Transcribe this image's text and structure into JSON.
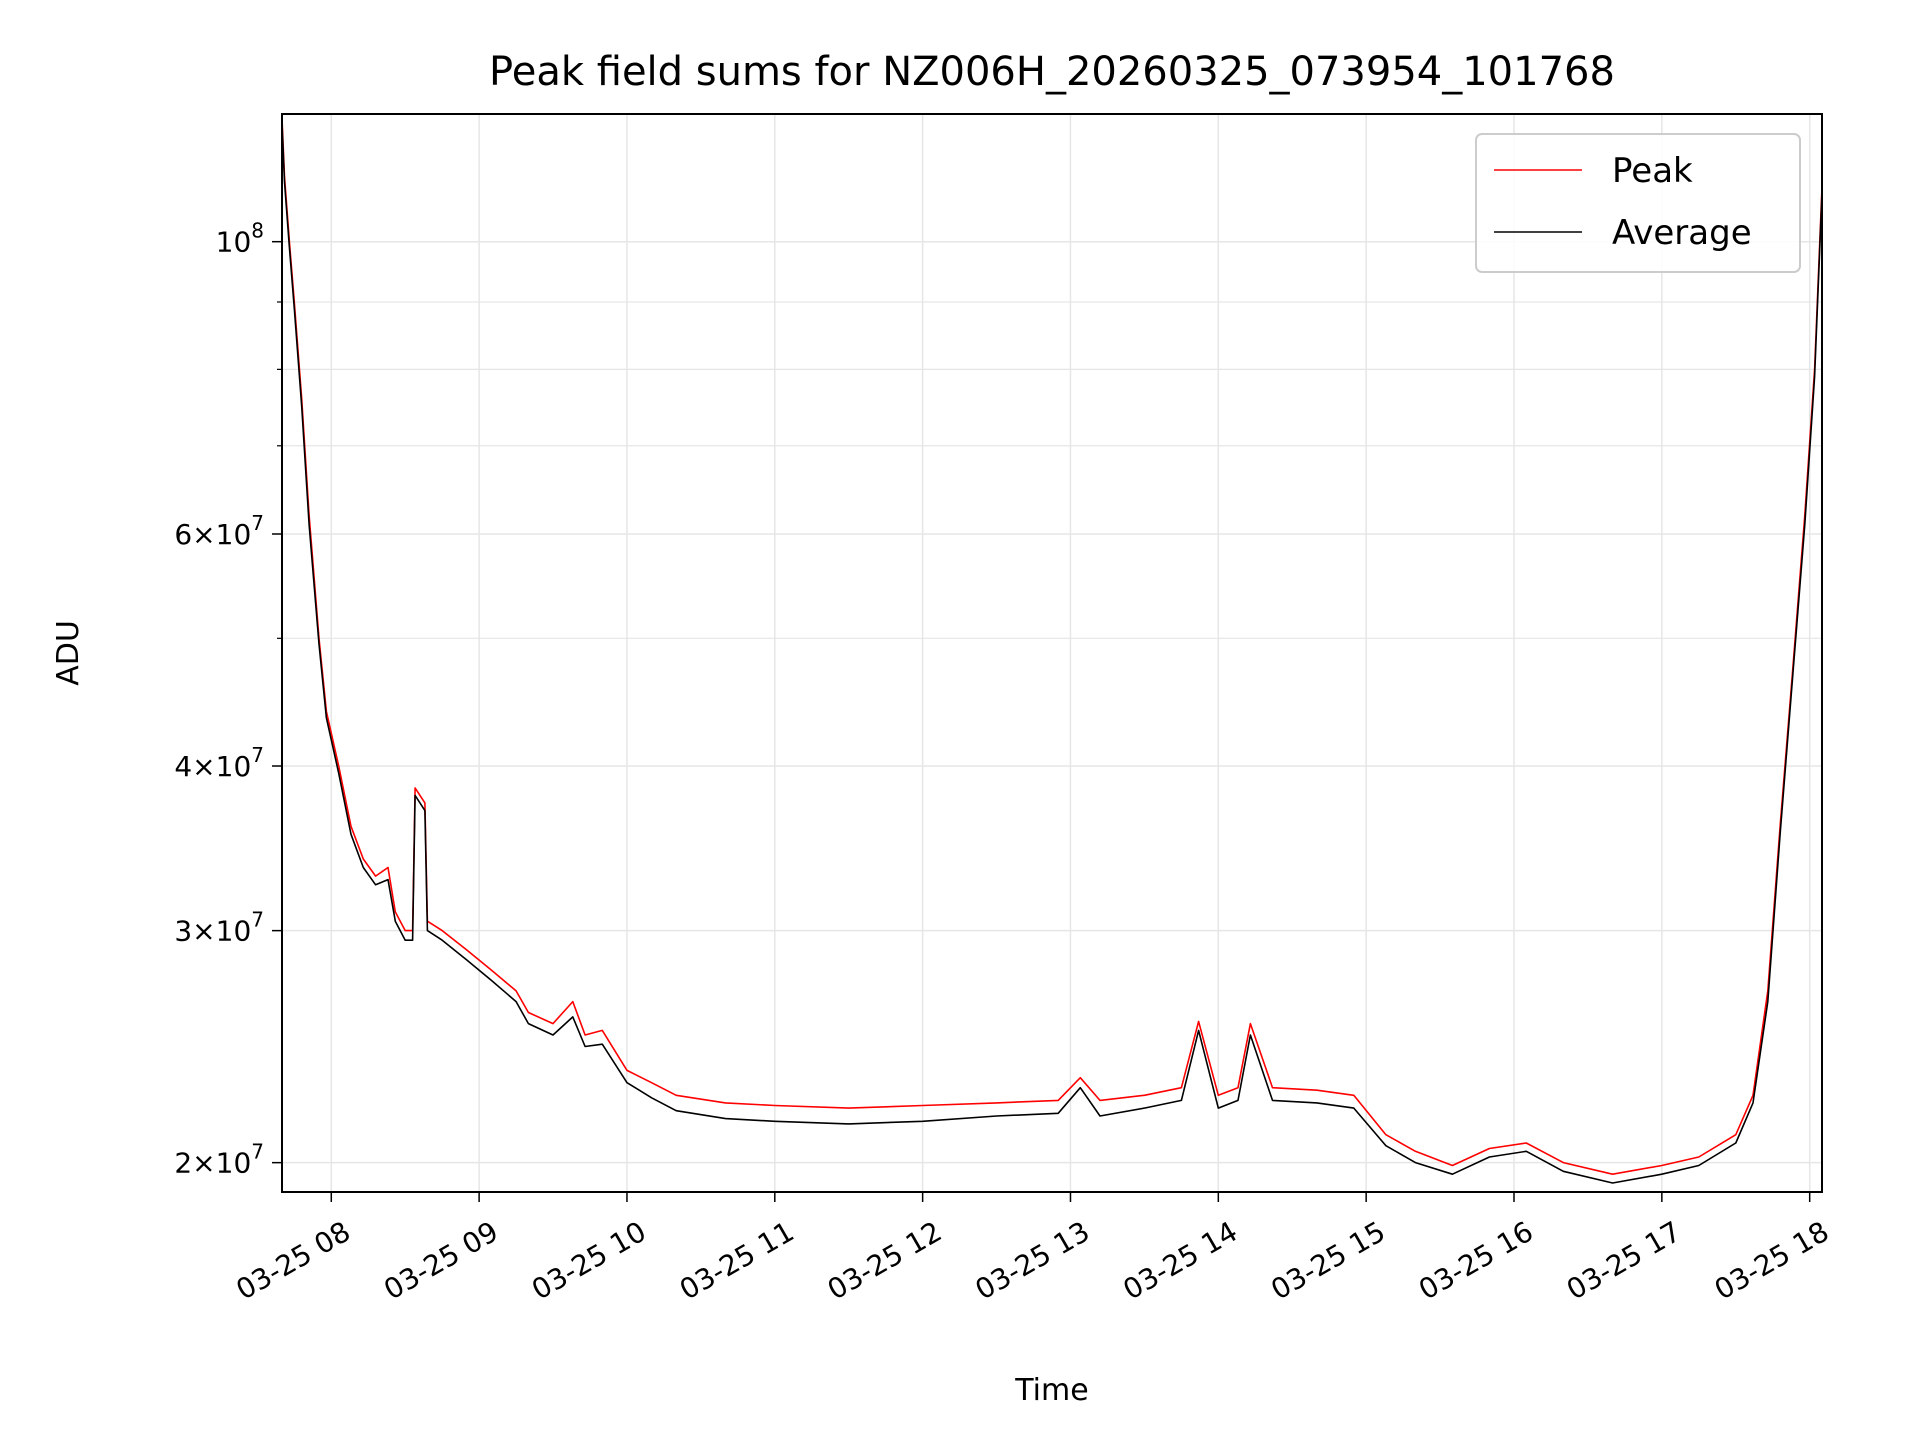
{
  "chart_data": {
    "type": "line",
    "title": "Peak field sums for NZ006H_20260325_073954_101768",
    "xlabel": "Time",
    "ylabel": "ADU",
    "yscale": "log",
    "xlim": [
      "2026-03-25 07:40",
      "2026-03-25 18:05"
    ],
    "ylim": [
      19000000,
      125000000
    ],
    "grid": true,
    "legend": {
      "placement": "top-right"
    },
    "x_ticks": [
      {
        "value": "2026-03-25 08:00",
        "label": "03-25 08"
      },
      {
        "value": "2026-03-25 09:00",
        "label": "03-25 09"
      },
      {
        "value": "2026-03-25 10:00",
        "label": "03-25 10"
      },
      {
        "value": "2026-03-25 11:00",
        "label": "03-25 11"
      },
      {
        "value": "2026-03-25 12:00",
        "label": "03-25 12"
      },
      {
        "value": "2026-03-25 13:00",
        "label": "03-25 13"
      },
      {
        "value": "2026-03-25 14:00",
        "label": "03-25 14"
      },
      {
        "value": "2026-03-25 15:00",
        "label": "03-25 15"
      },
      {
        "value": "2026-03-25 16:00",
        "label": "03-25 16"
      },
      {
        "value": "2026-03-25 17:00",
        "label": "03-25 17"
      },
      {
        "value": "2026-03-25 18:00",
        "label": "03-25 18"
      }
    ],
    "y_ticks": [
      {
        "value": 20000000,
        "mantissa": "2",
        "exponent": "7"
      },
      {
        "value": 30000000,
        "mantissa": "3",
        "exponent": "7"
      },
      {
        "value": 40000000,
        "mantissa": "4",
        "exponent": "7"
      },
      {
        "value": 60000000,
        "mantissa": "6",
        "exponent": "7"
      },
      {
        "value": 100000000,
        "mantissa": "",
        "exponent": "8"
      }
    ],
    "y_minor_ticks": [
      50000000,
      70000000,
      80000000,
      90000000
    ],
    "series": [
      {
        "name": "Peak",
        "color": "#ff0000",
        "points": [
          [
            "2026-03-25 07:40",
            124000000
          ],
          [
            "2026-03-25 07:41",
            112000000
          ],
          [
            "2026-03-25 07:43",
            100000000
          ],
          [
            "2026-03-25 07:45",
            90000000
          ],
          [
            "2026-03-25 07:48",
            76000000
          ],
          [
            "2026-03-25 07:51",
            62000000
          ],
          [
            "2026-03-25 07:55",
            50000000
          ],
          [
            "2026-03-25 07:58",
            44000000
          ],
          [
            "2026-03-25 08:03",
            40000000
          ],
          [
            "2026-03-25 08:08",
            36000000
          ],
          [
            "2026-03-25 08:13",
            34000000
          ],
          [
            "2026-03-25 08:18",
            33000000
          ],
          [
            "2026-03-25 08:23",
            33500000
          ],
          [
            "2026-03-25 08:26",
            31000000
          ],
          [
            "2026-03-25 08:30",
            30000000
          ],
          [
            "2026-03-25 08:33",
            30000000
          ],
          [
            "2026-03-25 08:34",
            38500000
          ],
          [
            "2026-03-25 08:38",
            37500000
          ],
          [
            "2026-03-25 08:39",
            30500000
          ],
          [
            "2026-03-25 08:45",
            30000000
          ],
          [
            "2026-03-25 08:55",
            29000000
          ],
          [
            "2026-03-25 09:05",
            28000000
          ],
          [
            "2026-03-25 09:15",
            27000000
          ],
          [
            "2026-03-25 09:20",
            26000000
          ],
          [
            "2026-03-25 09:30",
            25500000
          ],
          [
            "2026-03-25 09:38",
            26500000
          ],
          [
            "2026-03-25 09:43",
            25000000
          ],
          [
            "2026-03-25 09:50",
            25200000
          ],
          [
            "2026-03-25 10:00",
            23500000
          ],
          [
            "2026-03-25 10:10",
            23000000
          ],
          [
            "2026-03-25 10:20",
            22500000
          ],
          [
            "2026-03-25 10:40",
            22200000
          ],
          [
            "2026-03-25 11:00",
            22100000
          ],
          [
            "2026-03-25 11:30",
            22000000
          ],
          [
            "2026-03-25 12:00",
            22100000
          ],
          [
            "2026-03-25 12:30",
            22200000
          ],
          [
            "2026-03-25 12:55",
            22300000
          ],
          [
            "2026-03-25 13:04",
            23200000
          ],
          [
            "2026-03-25 13:12",
            22300000
          ],
          [
            "2026-03-25 13:30",
            22500000
          ],
          [
            "2026-03-25 13:45",
            22800000
          ],
          [
            "2026-03-25 13:52",
            25600000
          ],
          [
            "2026-03-25 14:00",
            22500000
          ],
          [
            "2026-03-25 14:08",
            22800000
          ],
          [
            "2026-03-25 14:13",
            25500000
          ],
          [
            "2026-03-25 14:22",
            22800000
          ],
          [
            "2026-03-25 14:40",
            22700000
          ],
          [
            "2026-03-25 14:55",
            22500000
          ],
          [
            "2026-03-25 15:08",
            21000000
          ],
          [
            "2026-03-25 15:20",
            20400000
          ],
          [
            "2026-03-25 15:35",
            19900000
          ],
          [
            "2026-03-25 15:50",
            20500000
          ],
          [
            "2026-03-25 16:05",
            20700000
          ],
          [
            "2026-03-25 16:20",
            20000000
          ],
          [
            "2026-03-25 16:40",
            19600000
          ],
          [
            "2026-03-25 17:00",
            19900000
          ],
          [
            "2026-03-25 17:15",
            20200000
          ],
          [
            "2026-03-25 17:30",
            21000000
          ],
          [
            "2026-03-25 17:37",
            22500000
          ],
          [
            "2026-03-25 17:43",
            27000000
          ],
          [
            "2026-03-25 17:48",
            36000000
          ],
          [
            "2026-03-25 17:53",
            47000000
          ],
          [
            "2026-03-25 17:58",
            62000000
          ],
          [
            "2026-03-25 18:02",
            80000000
          ],
          [
            "2026-03-25 18:05",
            110000000
          ]
        ]
      },
      {
        "name": "Average",
        "color": "#000000",
        "points": [
          [
            "2026-03-25 07:40",
            123000000
          ],
          [
            "2026-03-25 07:41",
            111000000
          ],
          [
            "2026-03-25 07:43",
            99000000
          ],
          [
            "2026-03-25 07:45",
            89000000
          ],
          [
            "2026-03-25 07:48",
            75000000
          ],
          [
            "2026-03-25 07:51",
            61000000
          ],
          [
            "2026-03-25 07:55",
            49500000
          ],
          [
            "2026-03-25 07:58",
            43500000
          ],
          [
            "2026-03-25 08:03",
            39500000
          ],
          [
            "2026-03-25 08:08",
            35500000
          ],
          [
            "2026-03-25 08:13",
            33500000
          ],
          [
            "2026-03-25 08:18",
            32500000
          ],
          [
            "2026-03-25 08:23",
            32800000
          ],
          [
            "2026-03-25 08:26",
            30500000
          ],
          [
            "2026-03-25 08:30",
            29500000
          ],
          [
            "2026-03-25 08:33",
            29500000
          ],
          [
            "2026-03-25 08:34",
            38000000
          ],
          [
            "2026-03-25 08:38",
            37000000
          ],
          [
            "2026-03-25 08:39",
            30000000
          ],
          [
            "2026-03-25 08:45",
            29500000
          ],
          [
            "2026-03-25 08:55",
            28500000
          ],
          [
            "2026-03-25 09:05",
            27500000
          ],
          [
            "2026-03-25 09:15",
            26500000
          ],
          [
            "2026-03-25 09:20",
            25500000
          ],
          [
            "2026-03-25 09:30",
            25000000
          ],
          [
            "2026-03-25 09:38",
            25800000
          ],
          [
            "2026-03-25 09:43",
            24500000
          ],
          [
            "2026-03-25 09:50",
            24600000
          ],
          [
            "2026-03-25 10:00",
            23000000
          ],
          [
            "2026-03-25 10:10",
            22400000
          ],
          [
            "2026-03-25 10:20",
            21900000
          ],
          [
            "2026-03-25 10:40",
            21600000
          ],
          [
            "2026-03-25 11:00",
            21500000
          ],
          [
            "2026-03-25 11:30",
            21400000
          ],
          [
            "2026-03-25 12:00",
            21500000
          ],
          [
            "2026-03-25 12:30",
            21700000
          ],
          [
            "2026-03-25 12:55",
            21800000
          ],
          [
            "2026-03-25 13:04",
            22800000
          ],
          [
            "2026-03-25 13:12",
            21700000
          ],
          [
            "2026-03-25 13:30",
            22000000
          ],
          [
            "2026-03-25 13:45",
            22300000
          ],
          [
            "2026-03-25 13:52",
            25200000
          ],
          [
            "2026-03-25 14:00",
            22000000
          ],
          [
            "2026-03-25 14:08",
            22300000
          ],
          [
            "2026-03-25 14:13",
            25000000
          ],
          [
            "2026-03-25 14:22",
            22300000
          ],
          [
            "2026-03-25 14:40",
            22200000
          ],
          [
            "2026-03-25 14:55",
            22000000
          ],
          [
            "2026-03-25 15:08",
            20600000
          ],
          [
            "2026-03-25 15:20",
            20000000
          ],
          [
            "2026-03-25 15:35",
            19600000
          ],
          [
            "2026-03-25 15:50",
            20200000
          ],
          [
            "2026-03-25 16:05",
            20400000
          ],
          [
            "2026-03-25 16:20",
            19700000
          ],
          [
            "2026-03-25 16:40",
            19300000
          ],
          [
            "2026-03-25 17:00",
            19600000
          ],
          [
            "2026-03-25 17:15",
            19900000
          ],
          [
            "2026-03-25 17:30",
            20700000
          ],
          [
            "2026-03-25 17:37",
            22200000
          ],
          [
            "2026-03-25 17:43",
            26500000
          ],
          [
            "2026-03-25 17:48",
            35500000
          ],
          [
            "2026-03-25 17:53",
            46500000
          ],
          [
            "2026-03-25 17:58",
            61000000
          ],
          [
            "2026-03-25 18:02",
            79000000
          ],
          [
            "2026-03-25 18:05",
            109000000
          ]
        ]
      }
    ]
  }
}
